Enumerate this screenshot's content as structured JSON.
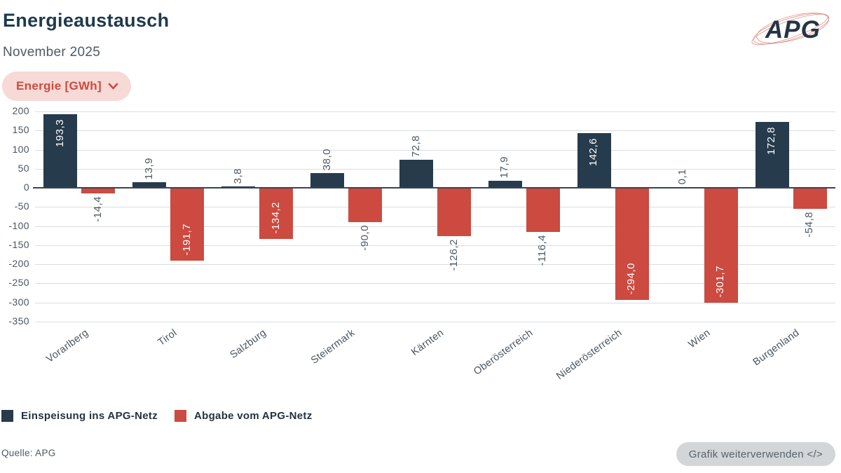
{
  "header": {
    "title": "Energieaustausch",
    "subtitle": "November 2025"
  },
  "controls": {
    "unit_dropdown": {
      "label": "Energie [GWh]",
      "icon": "chevron-down-icon"
    }
  },
  "logo": {
    "text": "APG"
  },
  "chart_data": {
    "type": "bar",
    "title": "Energieaustausch",
    "subtitle": "November 2025",
    "unit": "GWh",
    "categories": [
      "Vorarlberg",
      "Tirol",
      "Salzburg",
      "Steiermark",
      "Kärnten",
      "Oberösterreich",
      "Niederösterreich",
      "Wien",
      "Burgenland"
    ],
    "series": [
      {
        "name": "Einspeisung ins APG-Netz",
        "color": "#263b4c",
        "values": [
          193.3,
          13.9,
          3.8,
          38.0,
          72.8,
          17.9,
          142.6,
          0.1,
          172.8
        ]
      },
      {
        "name": "Abgabe vom APG-Netz",
        "color": "#cc4a40",
        "values": [
          -14.4,
          -191.7,
          -134.2,
          -90.0,
          -126.2,
          -116.4,
          -294.0,
          -301.7,
          -54.8
        ]
      }
    ],
    "ylim": [
      -350,
      200
    ],
    "ytick_step": 50,
    "grid": true,
    "legend_position": "bottom",
    "decimal_separator": ",",
    "value_labels": "rotated-vertical"
  },
  "footer": {
    "source": "Quelle: APG",
    "reuse_button_label": "Grafik weiterverwenden </>"
  }
}
